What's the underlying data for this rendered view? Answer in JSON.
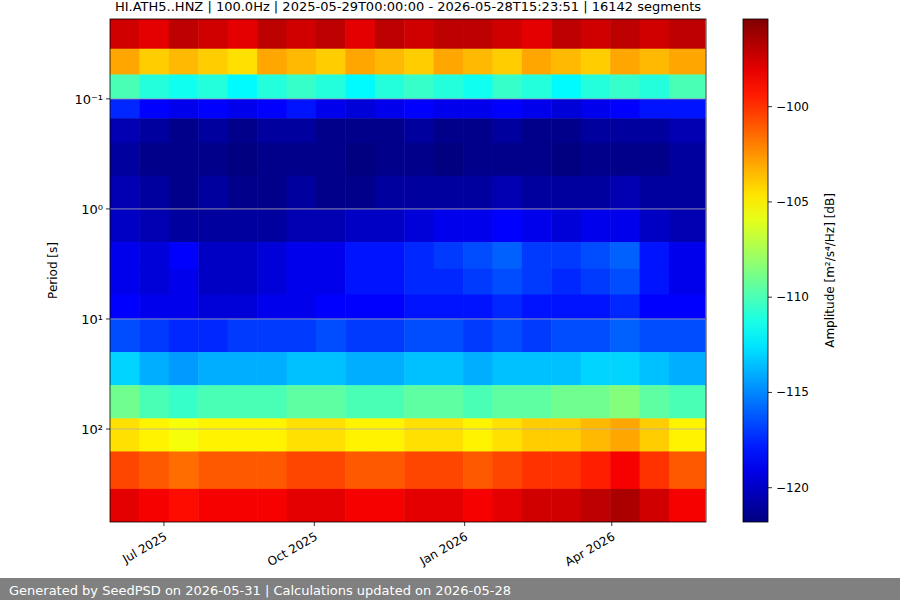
{
  "chart_data": {
    "type": "heatmap",
    "title": "HI.ATH5..HNZ | 100.0Hz | 2025-05-29T00:00:00 - 2026-05-28T15:23:51 | 16142 segments",
    "y_label": "Period [s]",
    "footer": "Generated by SeedPSD on 2026-05-31 | Calculations updated on 2026-05-28",
    "x_bins": [
      "2025-05-29",
      "2025-06-16",
      "2025-07-04",
      "2025-07-22",
      "2025-08-09",
      "2025-08-27",
      "2025-09-14",
      "2025-10-02",
      "2025-10-20",
      "2025-11-07",
      "2025-11-25",
      "2025-12-13",
      "2025-12-31",
      "2026-01-18",
      "2026-02-05",
      "2026-02-23",
      "2026-03-13",
      "2026-03-31",
      "2026-04-18",
      "2026-05-06",
      "2026-05-28"
    ],
    "y_bins": [
      0.0188,
      0.035,
      0.06,
      0.1,
      0.15,
      0.25,
      0.5,
      1,
      2,
      3.5,
      6,
      10,
      20,
      40,
      80,
      160,
      350,
      700
    ],
    "cells": [
      [
        -97.5,
        -98,
        -97,
        -97.5,
        -98,
        -97,
        -97.5,
        -97,
        -98,
        -97,
        -97.5,
        -97,
        -97,
        -97.5,
        -98,
        -97,
        -97.5,
        -97,
        -97.5,
        -97
      ],
      [
        -103,
        -104,
        -103.5,
        -104,
        -104.5,
        -103,
        -103.5,
        -104,
        -103,
        -103.5,
        -104,
        -103,
        -103.5,
        -104,
        -103,
        -103.5,
        -104,
        -103,
        -103.5,
        -103
      ],
      [
        -110,
        -111,
        -111.5,
        -111,
        -112,
        -111,
        -110.5,
        -111,
        -112,
        -111,
        -110.5,
        -111,
        -111.5,
        -110.5,
        -111,
        -112,
        -111,
        -110.5,
        -111,
        -110
      ],
      [
        -117.5,
        -118.5,
        -119,
        -118.5,
        -119,
        -118.5,
        -118,
        -119,
        -119.5,
        -119,
        -118.5,
        -119,
        -119,
        -118.5,
        -119,
        -119.5,
        -119,
        -118.5,
        -118,
        -118
      ],
      [
        -120.5,
        -121,
        -121.5,
        -121,
        -121.5,
        -121,
        -121,
        -121.5,
        -121.5,
        -121.5,
        -121,
        -121.5,
        -121.5,
        -121,
        -121.5,
        -121.5,
        -121,
        -121,
        -121,
        -120.5
      ],
      [
        -121,
        -121.5,
        -121.5,
        -121.5,
        -121.8,
        -121.5,
        -121.5,
        -121.5,
        -121.8,
        -121.5,
        -121.5,
        -121.8,
        -121.5,
        -121.5,
        -121.5,
        -121.8,
        -121.5,
        -121.5,
        -121.5,
        -121
      ],
      [
        -120.5,
        -121,
        -121.5,
        -121,
        -121.5,
        -121.5,
        -121,
        -121.5,
        -121.5,
        -121,
        -121,
        -121,
        -121,
        -120.5,
        -121,
        -121,
        -121,
        -120.5,
        -121,
        -121
      ],
      [
        -120,
        -120.5,
        -121,
        -121,
        -121,
        -121,
        -120.5,
        -120.5,
        -120,
        -120,
        -119.5,
        -119,
        -119,
        -118.5,
        -119,
        -119.5,
        -119,
        -119,
        -120,
        -120.5
      ],
      [
        -119,
        -119.5,
        -118.5,
        -120,
        -120,
        -119.5,
        -119,
        -119,
        -118,
        -118,
        -117.5,
        -117,
        -116.5,
        -116,
        -117,
        -117,
        -116.5,
        -116,
        -118,
        -119
      ],
      [
        -119,
        -119.5,
        -119,
        -120,
        -120,
        -119.5,
        -119,
        -119,
        -118,
        -118,
        -117.5,
        -117.5,
        -117,
        -116.5,
        -117,
        -117.5,
        -117,
        -116.5,
        -118,
        -119
      ],
      [
        -118.5,
        -119,
        -119,
        -119.5,
        -119.5,
        -119,
        -119,
        -118.5,
        -118.5,
        -118.5,
        -118,
        -118,
        -118,
        -117.5,
        -118,
        -118,
        -118,
        -117.5,
        -118.5,
        -118.5
      ],
      [
        -116.5,
        -117,
        -117.5,
        -117.5,
        -117,
        -117,
        -117,
        -116.5,
        -117,
        -117,
        -116.5,
        -116.5,
        -117,
        -116.5,
        -117,
        -116.5,
        -116.5,
        -116,
        -116.5,
        -116.5
      ],
      [
        -113,
        -114,
        -114.5,
        -114,
        -114,
        -114,
        -113.5,
        -113.5,
        -114,
        -114,
        -113.5,
        -113.5,
        -114,
        -113.5,
        -113.5,
        -113.5,
        -113,
        -113,
        -113.5,
        -114
      ],
      [
        -109,
        -110,
        -110.5,
        -110,
        -110,
        -110,
        -109.5,
        -109.5,
        -110,
        -110,
        -109.5,
        -109.5,
        -110,
        -109.5,
        -109.5,
        -109,
        -109,
        -108.5,
        -109.5,
        -110
      ],
      [
        -104.5,
        -105,
        -105.5,
        -105,
        -105,
        -105,
        -104.5,
        -104.5,
        -105,
        -105,
        -104.5,
        -104.5,
        -105,
        -104.5,
        -104,
        -104,
        -103.5,
        -103,
        -104,
        -105
      ],
      [
        -100.5,
        -101,
        -101.5,
        -101,
        -101,
        -101,
        -100.5,
        -100.5,
        -101,
        -101,
        -100.5,
        -100.5,
        -101,
        -100.5,
        -100,
        -100,
        -99.5,
        -98.5,
        -100,
        -101
      ],
      [
        -98,
        -98.5,
        -99,
        -98.5,
        -98.5,
        -98.5,
        -98,
        -98,
        -98.5,
        -98.5,
        -98,
        -98,
        -98.5,
        -98,
        -97.5,
        -97.5,
        -97,
        -96.5,
        -97.5,
        -98.5
      ]
    ],
    "xlim": [
      "2025-05-29T00:00:00",
      "2026-05-28T15:23:51"
    ],
    "xticks": [
      {
        "value": "2025-07-01",
        "label": "Jul 2025"
      },
      {
        "value": "2025-10-01",
        "label": "Oct 2025"
      },
      {
        "value": "2026-01-01",
        "label": "Jan 2026"
      },
      {
        "value": "2026-04-01",
        "label": "Apr 2026"
      }
    ],
    "ylim": [
      700,
      0.0188
    ],
    "yticks": [
      {
        "value": 0.1,
        "label": "10⁻¹"
      },
      {
        "value": 1,
        "label": "10⁰"
      },
      {
        "value": 10,
        "label": "10¹"
      },
      {
        "value": 100,
        "label": "10²"
      }
    ],
    "log": "y",
    "grid": true,
    "colorbar": {
      "label": "Amplitude [m²/s⁴/Hz] [dB]",
      "range": [
        -121.8,
        -95.4
      ],
      "ticks": [
        {
          "value": -100,
          "label": "−100"
        },
        {
          "value": -105,
          "label": "−105"
        },
        {
          "value": -110,
          "label": "−110"
        },
        {
          "value": -115,
          "label": "−115"
        },
        {
          "value": -120,
          "label": "−120"
        }
      ]
    }
  }
}
